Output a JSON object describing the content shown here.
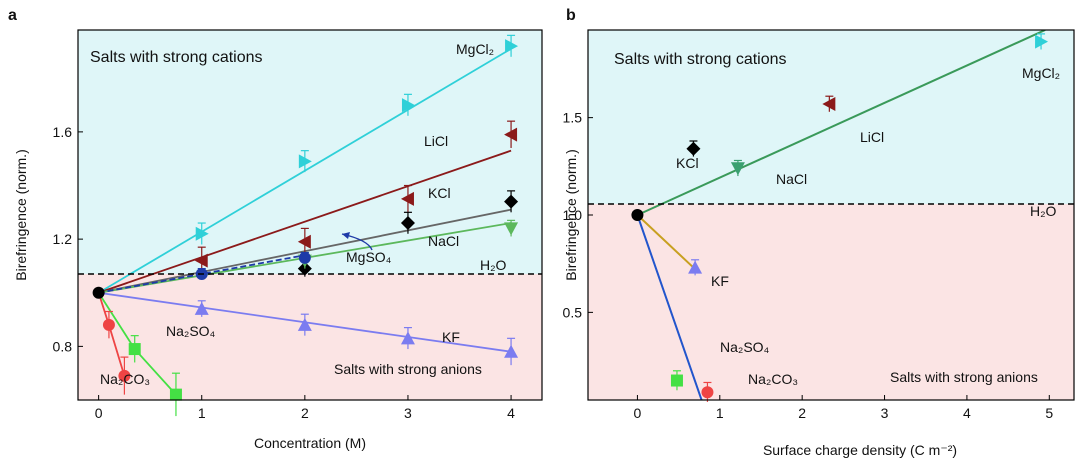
{
  "figure": {
    "panels": [
      "a",
      "b"
    ]
  },
  "chart_data": [
    {
      "type": "scatter",
      "panel_label": "a",
      "xlabel": "Concentration (M)",
      "ylabel": "Birefringence (norm.)",
      "xlim": [
        -0.2,
        4.3
      ],
      "ylim": [
        0.6,
        1.98
      ],
      "xticks": [
        0,
        1,
        2,
        3,
        4
      ],
      "yticks": [
        0.8,
        1.2,
        1.6
      ],
      "ytick_labels": [
        "0.8",
        "1.2",
        "1.6"
      ],
      "reference_line": {
        "y": 1.0,
        "label": "H₂O",
        "style": "dashed"
      },
      "region_labels": {
        "upper": "Salts with strong cations",
        "lower": "Salts with strong anions"
      },
      "region_colors": {
        "upper": "#dff6f8",
        "lower": "#fbe4e4"
      },
      "origin": {
        "x": 0,
        "y": 1.0
      },
      "annotation": {
        "text": "MgSO₄",
        "points_to": "MgSO4"
      },
      "series": [
        {
          "name": "MgCl₂",
          "color": "#2fd0d8",
          "marker": "triangle-right",
          "x": [
            1,
            2,
            3,
            4
          ],
          "y": [
            1.22,
            1.49,
            1.7,
            1.92
          ],
          "err": [
            0.04,
            0.04,
            0.04,
            0.04
          ],
          "fit": [
            [
              0,
              1.0
            ],
            [
              4,
              1.91
            ]
          ]
        },
        {
          "name": "LiCl",
          "color": "#8b1a1a",
          "marker": "triangle-left",
          "x": [
            1,
            2,
            3,
            4
          ],
          "y": [
            1.12,
            1.19,
            1.35,
            1.59
          ],
          "err": [
            0.05,
            0.05,
            0.05,
            0.05
          ],
          "fit": [
            [
              0,
              1.0
            ],
            [
              4,
              1.53
            ]
          ]
        },
        {
          "name": "KCl",
          "color": "#000000",
          "marker": "diamond",
          "x": [
            2,
            3,
            4
          ],
          "y": [
            1.09,
            1.26,
            1.34
          ],
          "err": [
            0.03,
            0.04,
            0.04
          ],
          "fit": [
            [
              0,
              1.0
            ],
            [
              4,
              1.31
            ]
          ]
        },
        {
          "name": "NaCl",
          "color": "#5cb85c",
          "marker": "triangle-down",
          "x": [
            2,
            4
          ],
          "y": [
            1.12,
            1.24
          ],
          "err": [
            0.03,
            0.03
          ],
          "fit": [
            [
              0,
              1.0
            ],
            [
              4,
              1.26
            ]
          ]
        },
        {
          "name": "MgSO4",
          "color": "#1e3aa8",
          "marker": "circle",
          "x": [
            1,
            2
          ],
          "y": [
            1.07,
            1.13
          ],
          "err": [
            0.02,
            0.02
          ],
          "fit": [
            [
              0,
              1.0
            ],
            [
              2,
              1.14
            ]
          ]
        },
        {
          "name": "KF",
          "color": "#7b7cf0",
          "marker": "triangle-up",
          "x": [
            1,
            2,
            3,
            4
          ],
          "y": [
            0.94,
            0.88,
            0.83,
            0.78
          ],
          "err": [
            0.03,
            0.04,
            0.04,
            0.05
          ],
          "fit": [
            [
              0,
              1.0
            ],
            [
              4,
              0.78
            ]
          ]
        },
        {
          "name": "Na₂SO₄",
          "color": "#44e044",
          "marker": "square",
          "x": [
            0.35,
            0.75
          ],
          "y": [
            0.79,
            0.62
          ],
          "err": [
            0.05,
            0.08
          ],
          "fit": [
            [
              0,
              1.0
            ],
            [
              0.35,
              0.79
            ],
            [
              0.75,
              0.62
            ]
          ]
        },
        {
          "name": "Na₂CO₃",
          "color": "#ee4444",
          "marker": "circle",
          "x": [
            0.1,
            0.25
          ],
          "y": [
            0.88,
            0.69
          ],
          "err": [
            0.05,
            0.07
          ],
          "fit": [
            [
              0,
              1.0
            ],
            [
              0.1,
              0.88
            ],
            [
              0.25,
              0.69
            ]
          ]
        }
      ]
    },
    {
      "type": "scatter",
      "panel_label": "b",
      "xlabel": "Surface charge density (C m⁻²)",
      "ylabel": "Birefringence (norm.)",
      "xlim": [
        -0.6,
        5.3
      ],
      "ylim": [
        0.05,
        1.95
      ],
      "xticks": [
        0,
        1,
        2,
        3,
        4,
        5
      ],
      "yticks": [
        0.5,
        1.0,
        1.5
      ],
      "ytick_labels": [
        "0.5",
        "1.0",
        "1.5"
      ],
      "reference_line": {
        "y": 1.0,
        "label": "H₂O",
        "style": "dashed"
      },
      "region_labels": {
        "upper": "Salts with strong cations",
        "lower": "Salts with strong anions"
      },
      "region_colors": {
        "upper": "#dff6f8",
        "lower": "#fbe4e4"
      },
      "origin": {
        "x": 0,
        "y": 1.0
      },
      "fit_lines": [
        {
          "color": "#3a9a5a",
          "points": [
            [
              0,
              1.0
            ],
            [
              4.95,
              1.95
            ]
          ]
        },
        {
          "color": "#2255cc",
          "points": [
            [
              0,
              1.0
            ],
            [
              0.82,
              0.0
            ]
          ]
        },
        {
          "color": "#c8a020",
          "points": [
            [
              0,
              1.0
            ],
            [
              0.68,
              0.73
            ]
          ]
        }
      ],
      "series": [
        {
          "name": "MgCl₂",
          "color": "#2fd0d8",
          "marker": "triangle-right",
          "x": [
            4.9
          ],
          "y": [
            1.89
          ],
          "err": [
            0.04
          ]
        },
        {
          "name": "LiCl",
          "color": "#8b1a1a",
          "marker": "triangle-left",
          "x": [
            2.33
          ],
          "y": [
            1.57
          ],
          "err": [
            0.04
          ]
        },
        {
          "name": "KCl",
          "color": "#000000",
          "marker": "diamond",
          "x": [
            0.68
          ],
          "y": [
            1.34
          ],
          "err": [
            0.04
          ]
        },
        {
          "name": "NaCl",
          "color": "#3aa070",
          "marker": "triangle-down",
          "x": [
            1.22
          ],
          "y": [
            1.24
          ],
          "err": [
            0.04
          ]
        },
        {
          "name": "KF",
          "color": "#7b7cf0",
          "marker": "triangle-up",
          "x": [
            0.7
          ],
          "y": [
            0.73
          ],
          "err": [
            0.04
          ]
        },
        {
          "name": "Na₂SO₄",
          "color": "#44e044",
          "marker": "square",
          "x": [
            0.48
          ],
          "y": [
            0.15
          ],
          "err": [
            0.05
          ]
        },
        {
          "name": "Na₂CO₃",
          "color": "#ee4444",
          "marker": "circle",
          "x": [
            0.85
          ],
          "y": [
            0.09
          ],
          "err": [
            0.05
          ]
        }
      ]
    }
  ]
}
